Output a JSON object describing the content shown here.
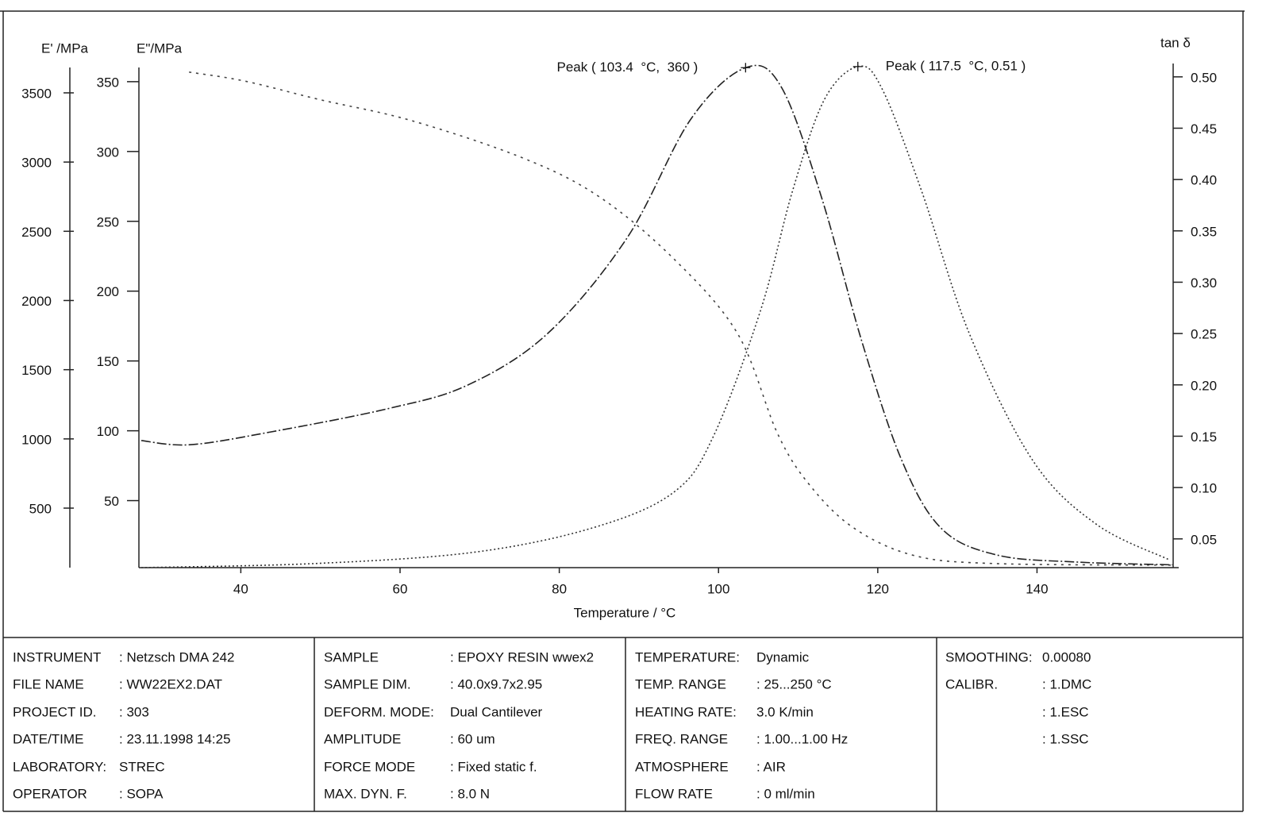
{
  "chart_data": {
    "type": "line",
    "x_label": "Temperature / °C",
    "y_label": "E\"/MPa",
    "y2_label": "tan δ",
    "y3_label": "E' /MPa",
    "xlim": [
      27.2,
      157.8
    ],
    "xticks": [
      40,
      60,
      80,
      100,
      120,
      140
    ],
    "ylim": [
      2,
      363
    ],
    "yticks": [
      50,
      100,
      150,
      200,
      250,
      300,
      350
    ],
    "y2lim": [
      0.022,
      0.513
    ],
    "y2ticks": [
      0.05,
      {
        "value": 0.1,
        "label": "0.10"
      },
      0.15,
      {
        "value": 0.2,
        "label": "0.20"
      },
      0.25,
      {
        "value": 0.3,
        "label": "0.30"
      },
      0.35,
      {
        "value": 0.4,
        "label": "0.40"
      },
      0.45,
      {
        "value": 0.5,
        "label": "0.50"
      }
    ],
    "y3lim": [
      70,
      3712
    ],
    "y3ticks": [
      500,
      1000,
      1500,
      2000,
      2500,
      3000,
      3500
    ],
    "series": [
      {
        "axis": "y3",
        "color": "#444",
        "dash": "3 6",
        "x": [
          33.5,
          40.5,
          50,
          61.4,
          75.4,
          85,
          94.4,
          102.4,
          107.4,
          111.4,
          116.9,
          124.4,
          134.4,
          157
        ],
        "values": [
          3650,
          3585,
          3450,
          3300,
          3030,
          2750,
          2300,
          1760,
          1040,
          670,
          360,
          160,
          100,
          88
        ]
      },
      {
        "axis": "y",
        "color": "#222",
        "dash": "12 3 2 3",
        "x": [
          27.5,
          33.6,
          43.6,
          58.6,
          68.6,
          78.6,
          88.5,
          96.5,
          103.4,
          107.9,
          113,
          118,
          123,
          128,
          135,
          145,
          157
        ],
        "values": [
          93,
          90,
          99,
          116,
          133,
          170,
          238,
          323,
          360,
          346,
          266,
          164,
          79,
          30,
          11,
          6,
          4
        ]
      },
      {
        "axis": "y2",
        "color": "#333",
        "dash": "2 3",
        "x": [
          27.5,
          49.3,
          69.3,
          84.3,
          94.3,
          99.3,
          105.3,
          109.3,
          113.3,
          117.5,
          120.5,
          125.5,
          131.5,
          139.5,
          147.5,
          156.5
        ],
        "values": [
          0.022,
          0.026,
          0.037,
          0.061,
          0.095,
          0.149,
          0.273,
          0.389,
          0.478,
          0.51,
          0.489,
          0.389,
          0.25,
          0.126,
          0.064,
          0.03
        ]
      }
    ],
    "annotations": [
      {
        "text": "Peak ( 103.4  °C,  360 )"
      },
      {
        "text": "Peak ( 117.5  °C, 0.51 )"
      }
    ]
  },
  "info_panel": {
    "columns": [
      {
        "rows": [
          {
            "label": "INSTRUMENT",
            "value": ": Netzsch DMA 242"
          },
          {
            "label": "FILE NAME",
            "value": ": WW22EX2.DAT"
          },
          {
            "label": "PROJECT ID.",
            "value": ": 303"
          },
          {
            "label": "DATE/TIME",
            "value": ": 23.11.1998 14:25"
          },
          {
            "label": "LABORATORY:",
            "value": "STREC"
          },
          {
            "label": "OPERATOR",
            "value": ": SOPA"
          }
        ]
      },
      {
        "rows": [
          {
            "label": "SAMPLE",
            "value": ": EPOXY RESIN wwex2"
          },
          {
            "label": "SAMPLE DIM.",
            "value": ": 40.0x9.7x2.95"
          },
          {
            "label": "DEFORM. MODE:",
            "value": "Dual Cantilever"
          },
          {
            "label": "AMPLITUDE",
            "value": ": 60 um"
          },
          {
            "label": "FORCE MODE",
            "value": ": Fixed static f."
          },
          {
            "label": "MAX. DYN. F.",
            "value": ": 8.0 N"
          }
        ]
      },
      {
        "rows": [
          {
            "label": "TEMPERATURE:",
            "value": "Dynamic"
          },
          {
            "label": "TEMP. RANGE",
            "value": ": 25...250 °C"
          },
          {
            "label": "HEATING RATE:",
            "value": "3.0 K/min"
          },
          {
            "label": "FREQ. RANGE",
            "value": ": 1.00...1.00 Hz"
          },
          {
            "label": "ATMOSPHERE",
            "value": ": AIR"
          },
          {
            "label": "FLOW RATE",
            "value": ": 0 ml/min"
          }
        ]
      },
      {
        "rows": [
          {
            "label": "SMOOTHING:",
            "value": "0.00080"
          },
          {
            "label": "CALIBR.",
            "value": ": 1.DMC"
          },
          {
            "value": ": 1.ESC"
          },
          {
            "value": ": 1.SSC"
          }
        ]
      }
    ]
  }
}
